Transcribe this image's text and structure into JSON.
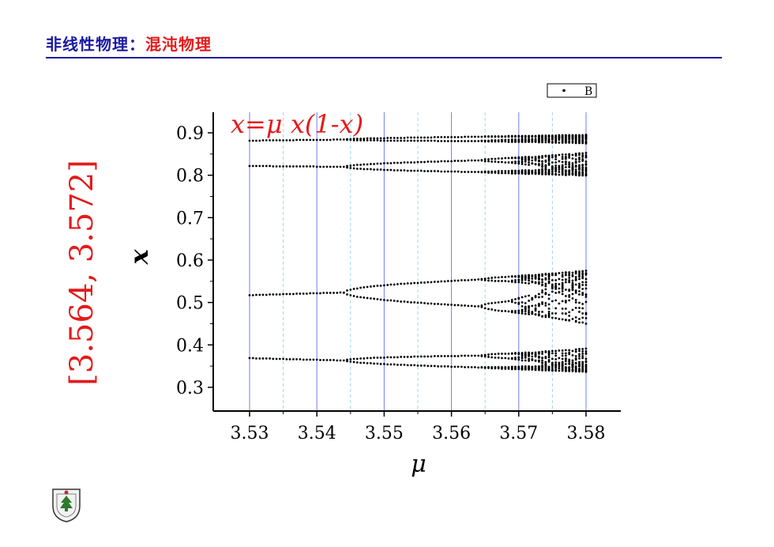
{
  "slide": {
    "title_part1": "非线性物理：",
    "title_part2": "混沌物理",
    "range_label": "[3.564, 3.572]"
  },
  "colors": {
    "title_blue": "#1a1aa0",
    "title_red": "#e31b1b",
    "gridline_blue": "#6f7ff0",
    "points": "#000000"
  },
  "chart_data": {
    "type": "scatter",
    "title": "",
    "equation": "x=μ x(1-x)",
    "xlabel": "μ",
    "ylabel": "x",
    "xlim": [
      3.525,
      3.58
    ],
    "ylim": [
      0.25,
      0.95
    ],
    "xticks": [
      "3.53",
      "3.54",
      "3.55",
      "3.56",
      "3.57",
      "3.58"
    ],
    "yticks": [
      "0.3",
      "0.4",
      "0.5",
      "0.6",
      "0.7",
      "0.8",
      "0.9"
    ],
    "grid": "vertical",
    "legend": {
      "position": "top-right",
      "entries": [
        "B"
      ]
    },
    "series": [
      {
        "name": "B",
        "description": "Attractor of the logistic map x_{n+1}=μ x_n(1-x_n) for μ from 3.53 to 3.58",
        "mu_start": 3.53,
        "mu_end": 3.58,
        "mu_step": 0.0005,
        "x_samples": [
          {
            "mu": 3.53,
            "x": [
              0.369,
              0.518,
              0.822,
              0.881
            ]
          },
          {
            "mu": 3.54,
            "x": [
              0.365,
              0.522,
              0.82,
              0.883
            ]
          },
          {
            "mu": 3.55,
            "x": [
              0.355,
              0.375,
              0.504,
              0.541,
              0.812,
              0.827,
              0.883,
              0.887
            ]
          },
          {
            "mu": 3.56,
            "x": [
              0.352,
              0.381,
              0.497,
              0.549,
              0.806,
              0.836,
              0.885,
              0.89
            ]
          },
          {
            "mu": 3.57,
            "x": [
              0.34,
              0.39,
              0.48,
              0.565,
              0.8,
              0.848,
              0.88,
              0.892
            ]
          }
        ]
      }
    ]
  }
}
